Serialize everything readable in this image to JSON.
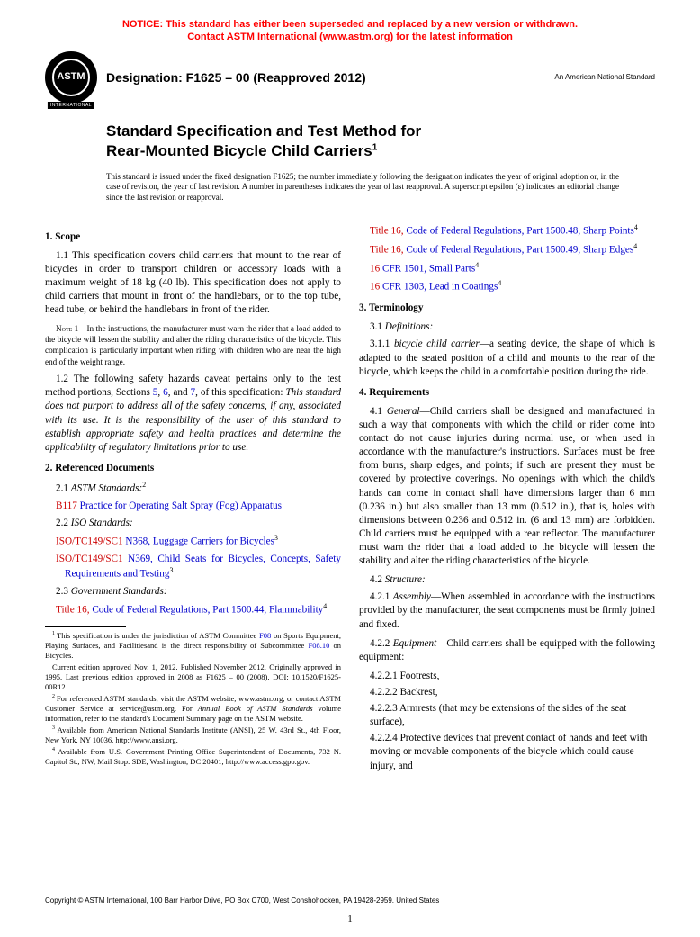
{
  "notice": {
    "line1": "NOTICE: This standard has either been superseded and replaced by a new version or withdrawn.",
    "line2": "Contact ASTM International (www.astm.org) for the latest information"
  },
  "header": {
    "logo_text": "ASTM",
    "logo_sub": "INTERNATIONAL",
    "designation": "Designation: F1625 – 00 (Reapproved 2012)",
    "ansi": "An American National Standard"
  },
  "title": {
    "line1": "Standard Specification and Test Method for",
    "line2": "Rear-Mounted Bicycle Child Carriers",
    "super": "1"
  },
  "issuance": "This standard is issued under the fixed designation F1625; the number immediately following the designation indicates the year of original adoption or, in the case of revision, the year of last revision. A number in parentheses indicates the year of last reapproval. A superscript epsilon (ε) indicates an editorial change since the last revision or reapproval.",
  "left": {
    "s1_head": "1. Scope",
    "s1_1": "1.1 This specification covers child carriers that mount to the rear of bicycles in order to transport children or accessory loads with a maximum weight of 18 kg (40 lb). This specification does not apply to child carriers that mount in front of the handlebars, or to the top tube, head tube, or behind the handlebars in front of the rider.",
    "note1_label": "Note 1—",
    "note1_body": "In the instructions, the manufacturer must warn the rider that a load added to the bicycle will lessen the stability and alter the riding characteristics of the bicycle. This complication is particularly important when riding with children who are near the high end of the weight range.",
    "s1_2_a": "1.2 The following safety hazards caveat pertains only to the test method portions, Sections ",
    "s1_2_links": {
      "a": "5",
      "b": "6",
      "c": "7"
    },
    "s1_2_b": ", of this specification: ",
    "s1_2_c": "This standard does not purport to address all of the safety concerns, if any, associated with its use. It is the responsibility of the user of this standard to establish appropriate safety and health practices and determine the applicability of regulatory limitations prior to use.",
    "s2_head": "2. Referenced Documents",
    "s2_1_label": "2.1 ",
    "s2_1_title": "ASTM Standards:",
    "s2_1_sup": "2",
    "b117_code": "B117",
    "b117_title": "Practice for Operating Salt Spray (Fog) Apparatus",
    "s2_2_label": "2.2 ",
    "s2_2_title": "ISO Standards:",
    "n368_code": "ISO/TC149/SC1",
    "n368_rest": "N368, Luggage Carriers for Bicycles",
    "n368_sup": "3",
    "n369_code": "ISO/TC149/SC1",
    "n369_rest": "N369, Child Seats for Bicycles, Concepts, Safety Requirements and Testing",
    "n369_sup": "3",
    "s2_3_label": "2.3 ",
    "s2_3_title": "Government Standards:",
    "t16a_code": "Title 16,",
    "t16a_rest": "Code of Federal Regulations, Part 1500.44, Flammability",
    "t16a_sup": "4",
    "fn1": "This specification is under the jurisdiction of ASTM Committee ",
    "fn1_link": "F08",
    "fn1_b": " on Sports Equipment, Playing Surfaces, and Facilitiesand is the direct responsibility of Subcommittee ",
    "fn1_link2": "F08.10",
    "fn1_c": " on Bicycles.",
    "fn1_d": "Current edition approved Nov. 1, 2012. Published November 2012. Originally approved in 1995. Last previous edition approved in 2008 as F1625 – 00 (2008). DOI: 10.1520/F1625-00R12.",
    "fn2": "For referenced ASTM standards, visit the ASTM website, www.astm.org, or contact ASTM Customer Service at service@astm.org. For ",
    "fn2_ital": "Annual Book of ASTM Standards",
    "fn2_b": " volume information, refer to the standard's Document Summary page on the ASTM website.",
    "fn3": "Available from American National Standards Institute (ANSI), 25 W. 43rd St., 4th Floor, New York, NY 10036, http://www.ansi.org.",
    "fn4": "Available from U.S. Government Printing Office Superintendent of Documents, 732 N. Capitol St., NW, Mail Stop: SDE, Washington, DC 20401, http://www.access.gpo.gov."
  },
  "right": {
    "t16b_code": "Title 16,",
    "t16b_rest": "Code of Federal Regulations, Part 1500.48, Sharp Points",
    "t16b_sup": "4",
    "t16c_code": "Title 16,",
    "t16c_rest": "Code of Federal Regulations, Part 1500.49, Sharp Edges",
    "t16c_sup": "4",
    "cfr1501_code": "16",
    "cfr1501_rest": "CFR 1501, Small Parts",
    "cfr1501_sup": "4",
    "cfr1303_code": "16",
    "cfr1303_rest": "CFR 1303, Lead in Coatings",
    "cfr1303_sup": "4",
    "s3_head": "3. Terminology",
    "s3_1_label": "3.1 ",
    "s3_1_title": "Definitions:",
    "s3_1_1_label": "3.1.1 ",
    "s3_1_1_term": "bicycle child carrier",
    "s3_1_1_body": "—a seating device, the shape of which is adapted to the seated position of a child and mounts to the rear of the bicycle, which keeps the child in a comfortable position during the ride.",
    "s4_head": "4. Requirements",
    "s4_1_label": "4.1 ",
    "s4_1_term": "General",
    "s4_1_body": "—Child carriers shall be designed and manufactured in such a way that components with which the child or rider come into contact do not cause injuries during normal use, or when used in accordance with the manufacturer's instructions. Surfaces must be free from burrs, sharp edges, and points; if such are present they must be covered by protective coverings. No openings with which the child's hands can come in contact shall have dimensions larger than 6 mm (0.236 in.) but also smaller than 13 mm (0.512 in.), that is, holes with dimensions between 0.236 and 0.512 in. (6 and 13 mm) are forbidden. Child carriers must be equipped with a rear reflector. The manufacturer must warn the rider that a load added to the bicycle will lessen the stability and alter the riding characteristics of the bicycle.",
    "s4_2_label": "4.2 ",
    "s4_2_title": "Structure:",
    "s4_2_1_label": "4.2.1 ",
    "s4_2_1_term": "Assembly",
    "s4_2_1_body": "—When assembled in accordance with the instructions provided by the manufacturer, the seat components must be firmly joined and fixed.",
    "s4_2_2_label": "4.2.2 ",
    "s4_2_2_term": "Equipment",
    "s4_2_2_body": "—Child carriers shall be equipped with the following equipment:",
    "s4_2_2_1": "4.2.2.1 Footrests,",
    "s4_2_2_2": "4.2.2.2 Backrest,",
    "s4_2_2_3": "4.2.2.3 Armrests (that may be extensions of the sides of the seat surface),",
    "s4_2_2_4": "4.2.2.4 Protective devices that prevent contact of hands and feet with moving or movable components of the bicycle which could cause injury, and"
  },
  "copyright": "Copyright © ASTM International, 100 Barr Harbor Drive, PO Box C700, West Conshohocken, PA 19428-2959. United States",
  "pagenum": "1"
}
